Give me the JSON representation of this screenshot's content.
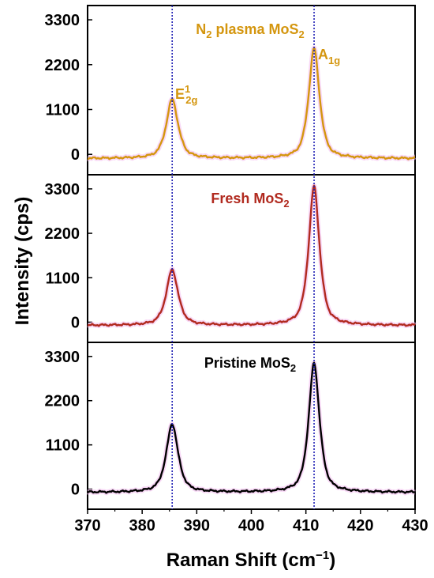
{
  "chart_data": {
    "type": "line",
    "xlabel": "Raman Shift (cm",
    "xlabel_sup": "−1",
    "xlabel_end": ")",
    "ylabel": "Intensity (cps)",
    "xlim": [
      370,
      430
    ],
    "x_ticks": [
      "370",
      "380",
      "390",
      "400",
      "410",
      "420",
      "430"
    ],
    "y_ticks": [
      "0",
      "1100",
      "2200",
      "3300"
    ],
    "reference_lines_x": [
      385.5,
      411.5
    ],
    "panels": [
      {
        "label_main": "N",
        "label_sub": "2",
        "label_rest": " plasma MoS",
        "label_sub2": "2",
        "color": "#d4960f",
        "ylim": [
          -500,
          3650
        ],
        "baseline": -100,
        "peaks": [
          {
            "center": 385.5,
            "height": 1350,
            "width": 1.2
          },
          {
            "center": 411.5,
            "height": 2600,
            "width": 1.1
          }
        ],
        "annotations": [
          {
            "main": "E",
            "sup": "1",
            "sub": "2g"
          },
          {
            "main": "A",
            "sub": "1g"
          }
        ]
      },
      {
        "label_main": "Fresh MoS",
        "label_sub": "2",
        "color": "#b12a1f",
        "ylim": [
          -500,
          3650
        ],
        "baseline": -80,
        "peaks": [
          {
            "center": 385.5,
            "height": 1300,
            "width": 1.2
          },
          {
            "center": 411.5,
            "height": 3360,
            "width": 1.1
          }
        ]
      },
      {
        "label_main": "Pristine MoS",
        "label_sub": "2",
        "color": "#000000",
        "ylim": [
          -500,
          3650
        ],
        "baseline": -80,
        "peaks": [
          {
            "center": 385.5,
            "height": 1620,
            "width": 1.2
          },
          {
            "center": 411.5,
            "height": 3130,
            "width": 1.1
          }
        ]
      }
    ]
  },
  "colors": {
    "reference_line": "#1f1fb4",
    "halo": "#f2b8ee"
  }
}
